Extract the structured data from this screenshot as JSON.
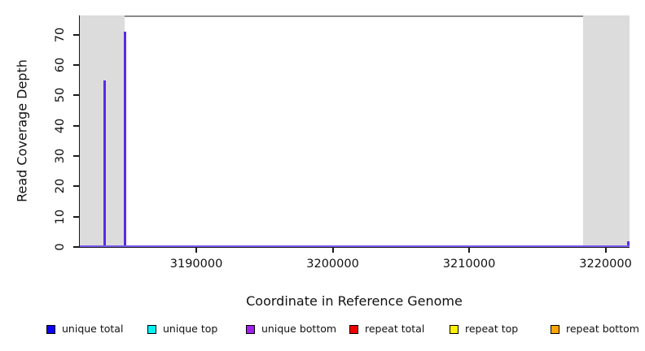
{
  "chart_data": {
    "type": "line",
    "title": "",
    "xlabel": "Coordinate in Reference Genome",
    "ylabel": "Read Coverage Depth",
    "x_axis_range": [
      3181400,
      3221700
    ],
    "y_axis_range": [
      0,
      76.4
    ],
    "x_ticks": [
      3190000,
      3200000,
      3210000,
      3220000
    ],
    "y_ticks": [
      0,
      10,
      20,
      30,
      40,
      50,
      60,
      70
    ],
    "grid": false,
    "baseline_y": 0,
    "spikes": [
      {
        "x": 3183200,
        "y": 55
      },
      {
        "x": 3184700,
        "y": 71
      },
      {
        "x": 3221600,
        "y": 2
      }
    ],
    "shaded_regions": [
      {
        "start": 3181400,
        "end": 3184700
      },
      {
        "start": 3218300,
        "end": 3221700
      }
    ],
    "colors": {
      "spike": "#5a2be8",
      "baseline": "#7b5cf0",
      "shade": "#dcdcdc",
      "plot_border": "#8a8a8a",
      "axis": "#1a1a1a"
    },
    "legend_position": "bottom",
    "legend": [
      {
        "label": "unique total",
        "color": "#0d00f2"
      },
      {
        "label": "unique top",
        "color": "#00f2f2"
      },
      {
        "label": "unique bottom",
        "color": "#a020f0"
      },
      {
        "label": "repeat total",
        "color": "#f20000"
      },
      {
        "label": "repeat top",
        "color": "#fff200"
      },
      {
        "label": "repeat bottom",
        "color": "#ffa500"
      }
    ]
  }
}
